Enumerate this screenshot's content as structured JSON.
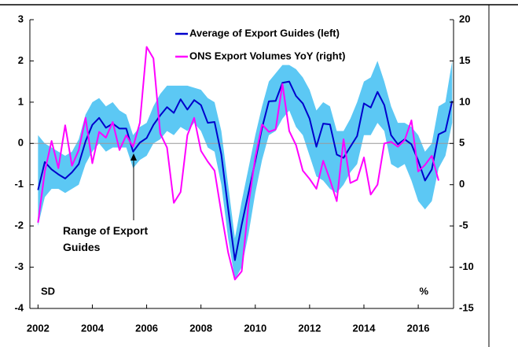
{
  "chart_data": {
    "type": "line",
    "xlim": [
      2001.7,
      2017.3
    ],
    "xticks": [
      2002,
      2004,
      2006,
      2008,
      2010,
      2012,
      2014,
      2016
    ],
    "ylim": [
      -4,
      3
    ],
    "yticks": [
      -4,
      -3,
      -2,
      -1,
      0,
      1,
      2,
      3
    ],
    "y2lim": [
      -15,
      20
    ],
    "y2ticks": [
      -15,
      -10,
      -5,
      0,
      5,
      10,
      15,
      20
    ],
    "ylabel": "SD",
    "y2label": "%",
    "zero_line": true,
    "legend": "top",
    "x": [
      2002,
      2002.25,
      2002.5,
      2002.75,
      2003,
      2003.25,
      2003.5,
      2003.75,
      2004,
      2004.25,
      2004.5,
      2004.75,
      2005,
      2005.25,
      2005.5,
      2005.75,
      2006,
      2006.25,
      2006.5,
      2006.75,
      2007,
      2007.25,
      2007.5,
      2007.75,
      2008,
      2008.25,
      2008.5,
      2008.75,
      2009,
      2009.25,
      2009.5,
      2009.75,
      2010,
      2010.25,
      2010.5,
      2010.75,
      2011,
      2011.25,
      2011.5,
      2011.75,
      2012,
      2012.25,
      2012.5,
      2012.75,
      2013,
      2013.25,
      2013.5,
      2013.75,
      2014,
      2014.25,
      2014.5,
      2014.75,
      2015,
      2015.25,
      2015.5,
      2015.75,
      2016,
      2016.25,
      2016.5,
      2016.75,
      2017,
      2017.25
    ],
    "range": {
      "name": "Range of Export Guides",
      "color": "#5cc8f4",
      "upper": [
        0.2,
        0.0,
        -0.1,
        -0.2,
        -0.3,
        -0.2,
        0.1,
        0.7,
        1.0,
        1.1,
        0.9,
        1.0,
        0.8,
        0.7,
        0.2,
        0.4,
        0.5,
        0.9,
        1.2,
        1.4,
        1.4,
        1.4,
        1.4,
        1.35,
        1.3,
        1.1,
        1.0,
        0.3,
        -1.0,
        -2.3,
        -1.4,
        -0.6,
        0.2,
        0.9,
        1.5,
        1.7,
        1.9,
        1.9,
        1.8,
        1.6,
        1.3,
        0.8,
        1.0,
        0.9,
        0.3,
        0.3,
        0.6,
        1.0,
        1.5,
        1.6,
        2.0,
        1.5,
        0.9,
        0.5,
        0.5,
        0.4,
        0.2,
        -0.2,
        0.0,
        0.9,
        1.0,
        2.0
      ],
      "lower": [
        -2.0,
        -1.3,
        -1.1,
        -1.1,
        -1.2,
        -1.1,
        -1.0,
        -0.5,
        -0.2,
        0.0,
        -0.2,
        -0.1,
        -0.1,
        -0.1,
        -0.6,
        -0.4,
        -0.3,
        0.0,
        0.1,
        0.3,
        0.2,
        0.4,
        0.3,
        0.5,
        0.3,
        -0.1,
        -0.2,
        -1.0,
        -2.3,
        -3.3,
        -3.0,
        -2.2,
        -1.2,
        -0.4,
        0.2,
        0.3,
        0.6,
        0.8,
        0.4,
        0.2,
        -0.3,
        -0.8,
        -0.9,
        -1.1,
        -1.2,
        -1.0,
        -0.7,
        -0.5,
        0.2,
        0.2,
        0.5,
        0.3,
        -0.5,
        -0.6,
        -0.5,
        -0.9,
        -1.4,
        -1.6,
        -1.4,
        -0.6,
        -0.3,
        0.5
      ]
    },
    "series": [
      {
        "name": "Average of Export Guides (left)",
        "color": "#0000cc",
        "axis": "y",
        "x": [
          2002,
          2002.25,
          2002.5,
          2002.75,
          2003,
          2003.25,
          2003.5,
          2003.75,
          2004,
          2004.25,
          2004.5,
          2004.75,
          2005,
          2005.25,
          2005.5,
          2005.75,
          2006,
          2006.25,
          2006.5,
          2006.75,
          2007,
          2007.25,
          2007.5,
          2007.75,
          2008,
          2008.25,
          2008.5,
          2008.75,
          2009,
          2009.25,
          2009.5,
          2009.75,
          2010,
          2010.25,
          2010.5,
          2010.75,
          2011,
          2011.25,
          2011.5,
          2011.75,
          2012,
          2012.25,
          2012.5,
          2012.75,
          2013,
          2013.25,
          2013.5,
          2013.75,
          2014,
          2014.25,
          2014.5,
          2014.75,
          2015,
          2015.25,
          2015.5,
          2015.75,
          2016,
          2016.25,
          2016.5,
          2016.75,
          2017,
          2017.25
        ],
        "values": [
          -1.13,
          -0.45,
          -0.63,
          -0.75,
          -0.85,
          -0.7,
          -0.5,
          0.05,
          0.45,
          0.62,
          0.38,
          0.48,
          0.36,
          0.36,
          -0.2,
          0.02,
          0.13,
          0.45,
          0.68,
          0.88,
          0.74,
          1.07,
          0.82,
          1.05,
          0.93,
          0.5,
          0.52,
          -0.27,
          -1.58,
          -2.83,
          -1.97,
          -1.2,
          -0.43,
          0.38,
          1.02,
          1.03,
          1.47,
          1.5,
          1.15,
          0.97,
          0.6,
          -0.08,
          0.48,
          0.46,
          -0.27,
          -0.35,
          -0.08,
          0.18,
          0.97,
          0.87,
          1.25,
          0.93,
          0.2,
          -0.02,
          0.1,
          -0.02,
          -0.42,
          -0.9,
          -0.63,
          0.22,
          0.3,
          1.03
        ]
      },
      {
        "name": "ONS Export Volumes YoY (right)",
        "color": "#ff00ff",
        "axis": "y2",
        "x": [
          2002,
          2002.25,
          2002.5,
          2002.75,
          2003,
          2003.25,
          2003.5,
          2003.75,
          2004,
          2004.25,
          2004.5,
          2004.75,
          2005,
          2005.25,
          2005.5,
          2005.75,
          2006,
          2006.25,
          2006.5,
          2006.75,
          2007,
          2007.25,
          2007.5,
          2007.75,
          2008,
          2008.25,
          2008.5,
          2008.75,
          2009,
          2009.25,
          2009.5,
          2009.75,
          2010,
          2010.25,
          2010.5,
          2010.75,
          2011,
          2011.25,
          2011.5,
          2011.75,
          2012,
          2012.25,
          2012.5,
          2012.75,
          2013,
          2013.25,
          2013.5,
          2013.75,
          2014,
          2014.25,
          2014.5,
          2014.75,
          2015,
          2015.25,
          2015.5,
          2015.75,
          2016,
          2016.25,
          2016.5,
          2016.75
        ],
        "values": [
          -4.6,
          1.6,
          5.3,
          2.0,
          7.2,
          2.3,
          4.2,
          8.1,
          2.6,
          6.4,
          5.7,
          7.6,
          4.2,
          6.0,
          4.6,
          7.5,
          16.7,
          15.3,
          6.2,
          4.5,
          -2.2,
          -0.9,
          6.0,
          8.1,
          4.1,
          2.8,
          1.7,
          -3.4,
          -8.2,
          -11.5,
          -10.5,
          -2.4,
          3.3,
          7.3,
          6.4,
          6.7,
          12.2,
          6.5,
          4.8,
          1.7,
          0.7,
          -0.5,
          2.9,
          0.6,
          -2.0,
          5.5,
          0.2,
          0.6,
          3.3,
          -1.2,
          0.0,
          5.0,
          5.2,
          4.6,
          5.4,
          7.8,
          1.6,
          2.4,
          3.5,
          0.5
        ]
      }
    ]
  }
}
